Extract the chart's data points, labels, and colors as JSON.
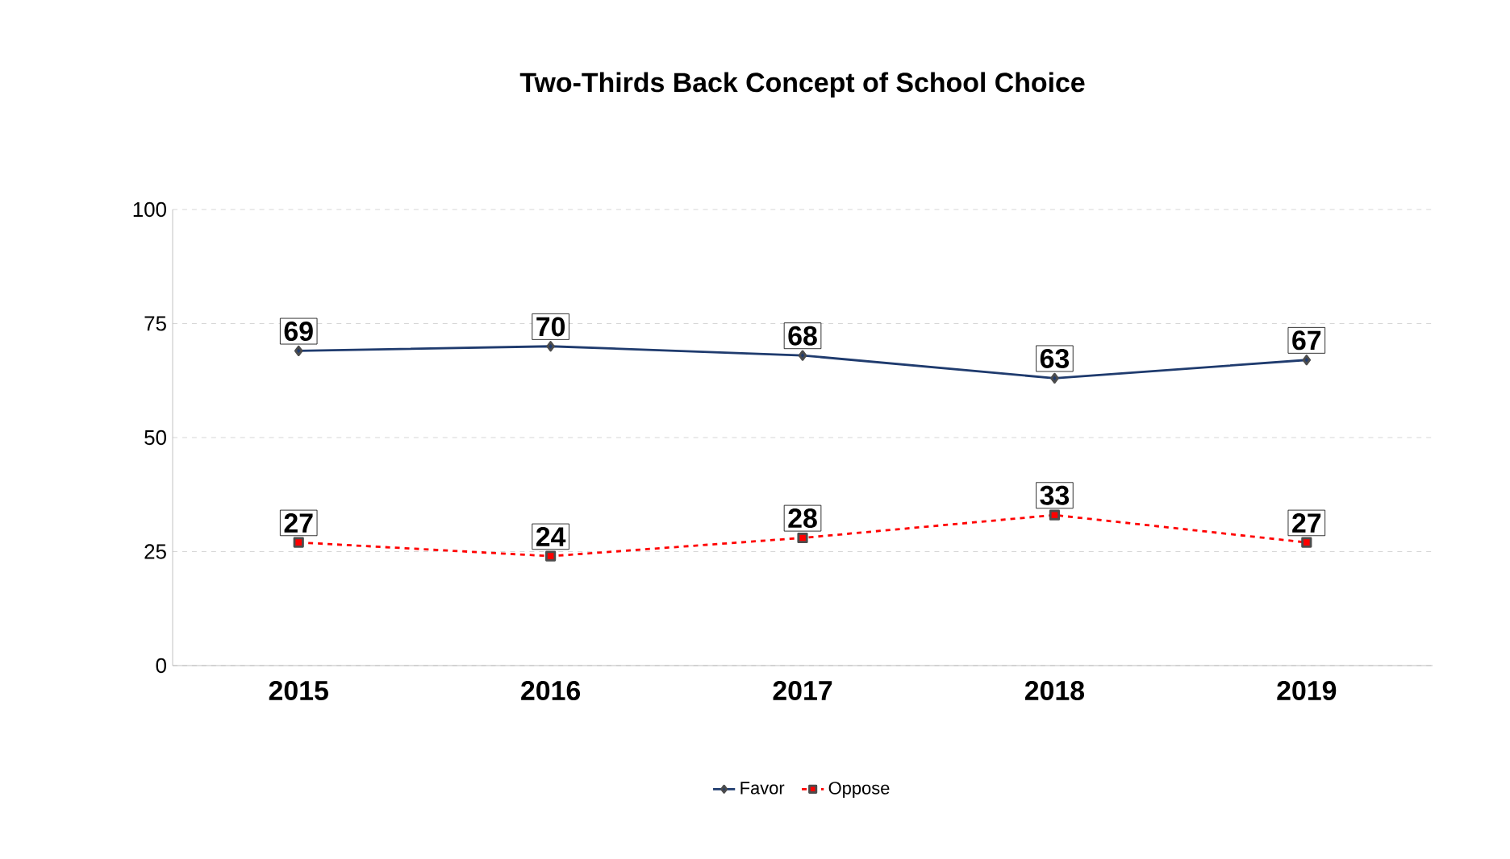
{
  "chart_data": {
    "type": "line",
    "title": "Two-Thirds Back Concept of School Choice",
    "categories": [
      "2015",
      "2016",
      "2017",
      "2018",
      "2019"
    ],
    "series": [
      {
        "name": "Favor",
        "color": "#1f3b6e",
        "values": [
          69,
          70,
          68,
          63,
          67
        ],
        "marker": "diamond",
        "line_style": "solid"
      },
      {
        "name": "Oppose",
        "color": "#ff0000",
        "values": [
          27,
          24,
          28,
          33,
          27
        ],
        "marker": "square",
        "line_style": "dashed"
      }
    ],
    "ylim": [
      0,
      100
    ],
    "yticks": [
      0,
      25,
      50,
      75,
      100
    ],
    "grid": "y",
    "legend": "bottom",
    "data_labels": true
  }
}
